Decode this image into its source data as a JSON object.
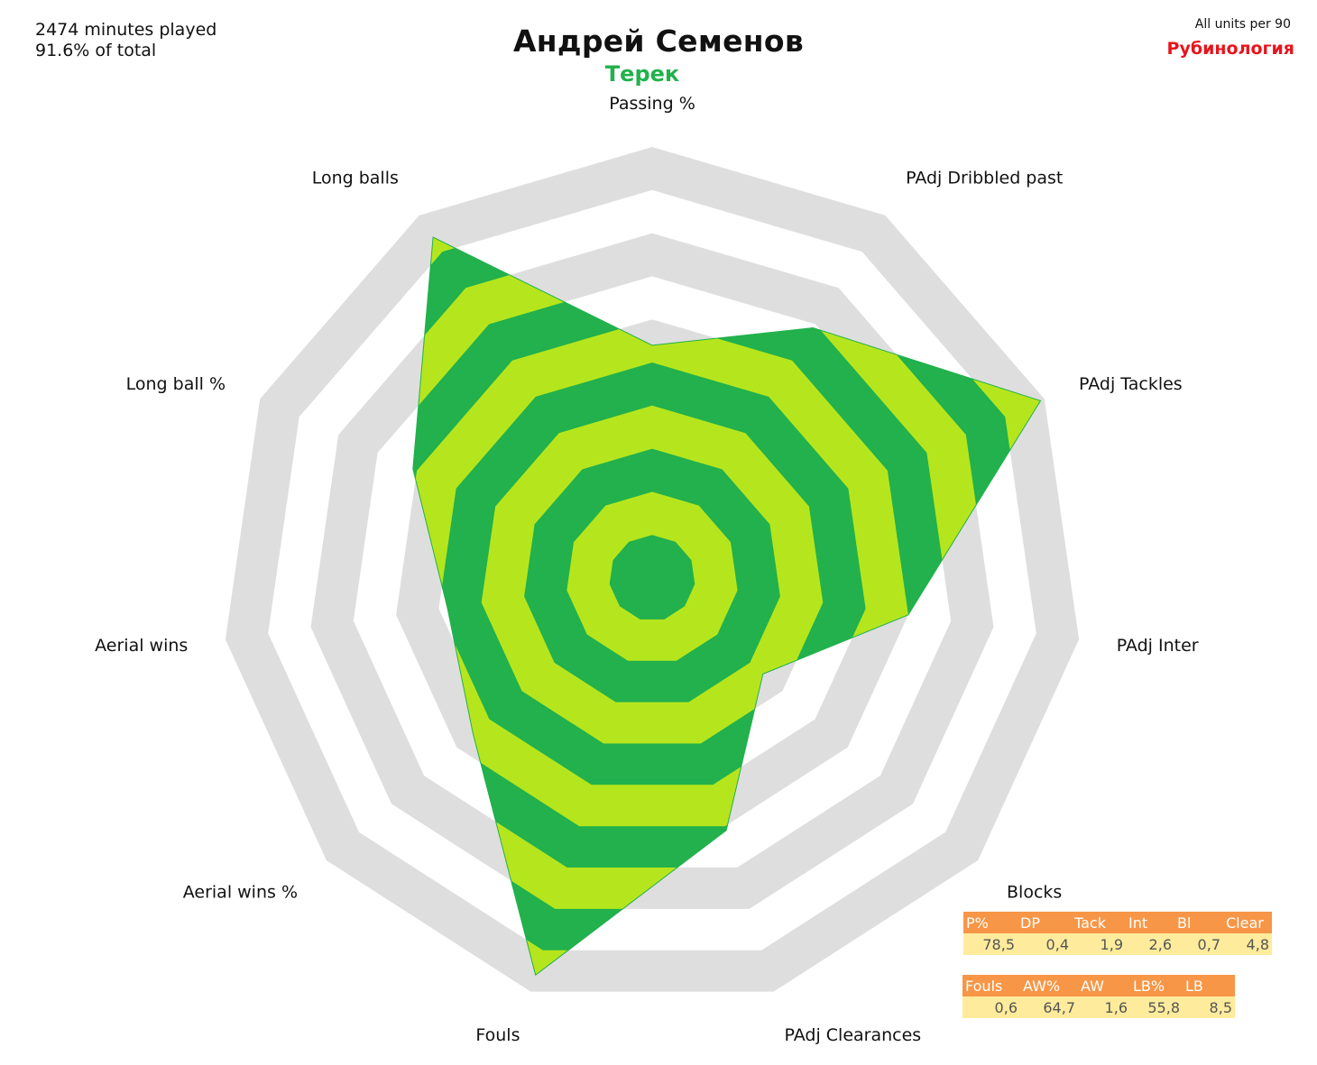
{
  "header": {
    "minutes": "2474 minutes played",
    "share": "91.6% of total",
    "player": "Андрей Семенов",
    "team": "Терек",
    "units": "All units per 90",
    "brand": "Рубинология"
  },
  "colors": {
    "fill_light": "#b5e61d",
    "fill_dark": "#22b14c",
    "grid": "#dedede",
    "accent": "#e8141c",
    "table_header": "#f79646",
    "table_cell": "#ffeb9c"
  },
  "chart_data": {
    "type": "radar",
    "title": "Андрей Семенов",
    "subtitle": "Терек",
    "axes": [
      "Passing %",
      "PAdj Dribbled past",
      "PAdj Tackles",
      "PAdj Inter",
      "Blocks",
      "PAdj Clearances",
      "Fouls",
      "Aerial wins %",
      "Aerial wins",
      "Long ball %",
      "Long balls"
    ],
    "values": [
      5.4,
      6.9,
      9.9,
      6.0,
      3.4,
      6.1,
      9.6,
      5.5,
      4.8,
      6.1,
      9.4
    ],
    "range": [
      0,
      10
    ],
    "rings": 10
  },
  "tables": [
    {
      "headers": [
        "P%",
        "DP",
        "Tack",
        "Int",
        "Bl",
        "Clear"
      ],
      "values": [
        "78,5",
        "0,4",
        "1,9",
        "2,6",
        "0,7",
        "4,8"
      ]
    },
    {
      "headers": [
        "Fouls",
        "AW%",
        "AW",
        "LB%",
        "LB"
      ],
      "values": [
        "0,6",
        "64,7",
        "1,6",
        "55,8",
        "8,5"
      ]
    }
  ]
}
